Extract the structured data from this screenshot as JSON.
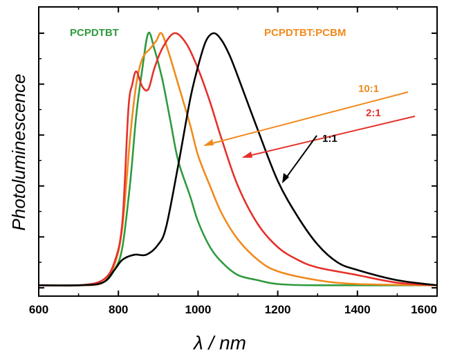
{
  "chart_data": {
    "type": "line",
    "xlabel": "λ / nm",
    "ylabel": "Photoluminescence",
    "xlim": [
      600,
      1600
    ],
    "ylim": [
      0,
      1.0
    ],
    "x_ticks": [
      "600",
      "800",
      "1000",
      "1200",
      "1400",
      "1600"
    ],
    "y_tick_labels_shown": false,
    "grid": false,
    "colors": {
      "green": "#2e9a3e",
      "orange": "#f08a1c",
      "red": "#e5302a",
      "black": "#000000"
    },
    "labels": {
      "pristine": "PCPDTBT",
      "blend_group": "PCPDTBT:PCBM",
      "r10": "10:1",
      "r2": "2:1",
      "r1": "1:1"
    },
    "series": [
      {
        "name": "PCPDTBT",
        "color": "#2e9a3e",
        "points": [
          [
            600,
            0.01
          ],
          [
            700,
            0.01
          ],
          [
            760,
            0.02
          ],
          [
            790,
            0.07
          ],
          [
            810,
            0.16
          ],
          [
            830,
            0.42
          ],
          [
            845,
            0.68
          ],
          [
            860,
            0.86
          ],
          [
            875,
            1.0
          ],
          [
            890,
            0.94
          ],
          [
            910,
            0.82
          ],
          [
            930,
            0.66
          ],
          [
            950,
            0.5
          ],
          [
            980,
            0.36
          ],
          [
            1000,
            0.26
          ],
          [
            1030,
            0.16
          ],
          [
            1060,
            0.1
          ],
          [
            1100,
            0.05
          ],
          [
            1150,
            0.03
          ],
          [
            1200,
            0.015
          ],
          [
            1300,
            0.01
          ],
          [
            1600,
            0.01
          ]
        ]
      },
      {
        "name": "10:1",
        "color": "#f08a1c",
        "points": [
          [
            600,
            0.01
          ],
          [
            700,
            0.01
          ],
          [
            760,
            0.02
          ],
          [
            790,
            0.09
          ],
          [
            810,
            0.24
          ],
          [
            830,
            0.6
          ],
          [
            845,
            0.8
          ],
          [
            860,
            0.9
          ],
          [
            880,
            0.94
          ],
          [
            895,
            0.97
          ],
          [
            908,
            1.0
          ],
          [
            925,
            0.93
          ],
          [
            950,
            0.8
          ],
          [
            980,
            0.64
          ],
          [
            1000,
            0.52
          ],
          [
            1030,
            0.4
          ],
          [
            1060,
            0.29
          ],
          [
            1100,
            0.19
          ],
          [
            1150,
            0.11
          ],
          [
            1200,
            0.065
          ],
          [
            1300,
            0.03
          ],
          [
            1400,
            0.015
          ],
          [
            1600,
            0.01
          ]
        ]
      },
      {
        "name": "2:1",
        "color": "#e5302a",
        "points": [
          [
            600,
            0.01
          ],
          [
            700,
            0.01
          ],
          [
            760,
            0.03
          ],
          [
            790,
            0.1
          ],
          [
            810,
            0.26
          ],
          [
            825,
            0.7
          ],
          [
            835,
            0.8
          ],
          [
            845,
            0.85
          ],
          [
            860,
            0.79
          ],
          [
            875,
            0.78
          ],
          [
            890,
            0.86
          ],
          [
            910,
            0.94
          ],
          [
            940,
            1.0
          ],
          [
            970,
            0.96
          ],
          [
            1000,
            0.86
          ],
          [
            1030,
            0.73
          ],
          [
            1060,
            0.58
          ],
          [
            1100,
            0.4
          ],
          [
            1150,
            0.25
          ],
          [
            1200,
            0.16
          ],
          [
            1250,
            0.11
          ],
          [
            1300,
            0.08
          ],
          [
            1400,
            0.05
          ],
          [
            1500,
            0.02
          ],
          [
            1600,
            0.01
          ]
        ]
      },
      {
        "name": "1:1",
        "color": "#000000",
        "points": [
          [
            600,
            0.01
          ],
          [
            700,
            0.01
          ],
          [
            760,
            0.02
          ],
          [
            790,
            0.07
          ],
          [
            810,
            0.11
          ],
          [
            840,
            0.13
          ],
          [
            870,
            0.13
          ],
          [
            900,
            0.17
          ],
          [
            920,
            0.24
          ],
          [
            950,
            0.48
          ],
          [
            980,
            0.74
          ],
          [
            1000,
            0.87
          ],
          [
            1020,
            0.97
          ],
          [
            1040,
            1.0
          ],
          [
            1060,
            0.97
          ],
          [
            1080,
            0.91
          ],
          [
            1100,
            0.83
          ],
          [
            1150,
            0.62
          ],
          [
            1200,
            0.42
          ],
          [
            1250,
            0.28
          ],
          [
            1300,
            0.17
          ],
          [
            1350,
            0.1
          ],
          [
            1400,
            0.07
          ],
          [
            1500,
            0.03
          ],
          [
            1600,
            0.01
          ]
        ]
      }
    ]
  }
}
